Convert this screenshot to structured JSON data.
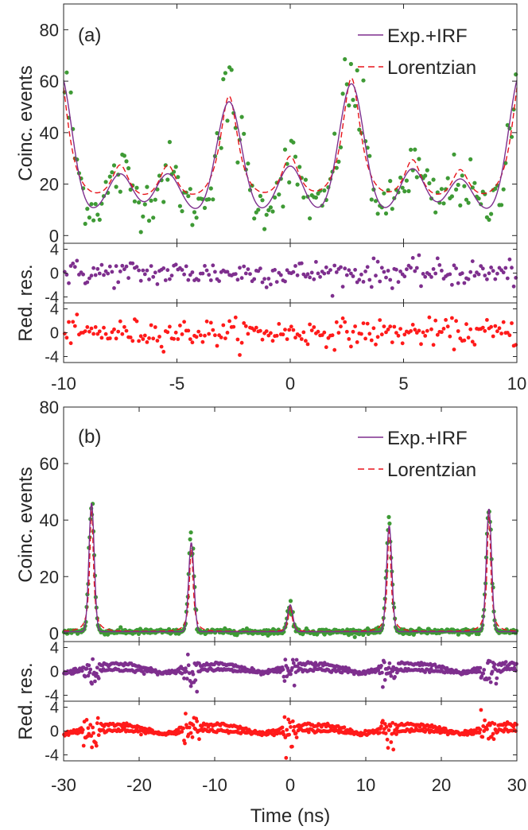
{
  "colors": {
    "exp_irf": "#7E2F8E",
    "lorentzian": "#E8141B",
    "data_points": "#3E9A35",
    "res_exp_irf": "#7E2F8E",
    "res_lorentzian": "#FF1A1A",
    "axis": "#262626"
  },
  "chart_data": [
    {
      "type": "line",
      "panel_label": "(a)",
      "xlabel": "",
      "ylabel": "Coinc. events",
      "residual_ylabel": "Red. res.",
      "xlim": [
        -10,
        10
      ],
      "ylim": [
        -3,
        90
      ],
      "yticks": [
        0,
        20,
        40,
        60,
        80
      ],
      "xticks": [
        -10,
        -5,
        0,
        5,
        10
      ],
      "residual_ylim": [
        -5,
        5
      ],
      "residual_yticks": [
        -4,
        0,
        4
      ],
      "legend_position": "top-right",
      "series": [
        {
          "name": "Exp.+IRF",
          "style": "solid"
        },
        {
          "name": "Lorentzian",
          "style": "dashed"
        }
      ],
      "peaks": [
        {
          "x": -10.2,
          "y": 64
        },
        {
          "x": -7.5,
          "y": 24
        },
        {
          "x": -5.4,
          "y": 24
        },
        {
          "x": -2.7,
          "y": 52
        },
        {
          "x": 0,
          "y": 27
        },
        {
          "x": 2.7,
          "y": 59
        },
        {
          "x": 5.4,
          "y": 26
        },
        {
          "x": 7.5,
          "y": 22
        },
        {
          "x": 10.2,
          "y": 64
        }
      ],
      "baseline": 8,
      "data_point_count": 220,
      "residual_range": [
        -3,
        3
      ]
    },
    {
      "type": "line",
      "panel_label": "(b)",
      "xlabel": "Time (ns)",
      "ylabel": "Coinc. events",
      "residual_ylabel": "Red. res.",
      "xlim": [
        -30,
        30
      ],
      "ylim": [
        -3,
        80
      ],
      "yticks": [
        0,
        20,
        40,
        60,
        80
      ],
      "xticks": [
        -30,
        -20,
        -10,
        0,
        10,
        20,
        30
      ],
      "residual_ylim": [
        -5,
        5
      ],
      "residual_yticks": [
        -4,
        0,
        4
      ],
      "legend_position": "top-right",
      "series": [
        {
          "name": "Exp.+IRF",
          "style": "solid"
        },
        {
          "name": "Lorentzian",
          "style": "dashed"
        }
      ],
      "peaks": [
        {
          "x": -26.3,
          "y": 46
        },
        {
          "x": -13.1,
          "y": 32
        },
        {
          "x": 0,
          "y": 10
        },
        {
          "x": 13.1,
          "y": 38
        },
        {
          "x": 26.3,
          "y": 44
        }
      ],
      "baseline": 0.5,
      "data_point_count": 600,
      "residual_range": [
        -3,
        3
      ]
    }
  ]
}
